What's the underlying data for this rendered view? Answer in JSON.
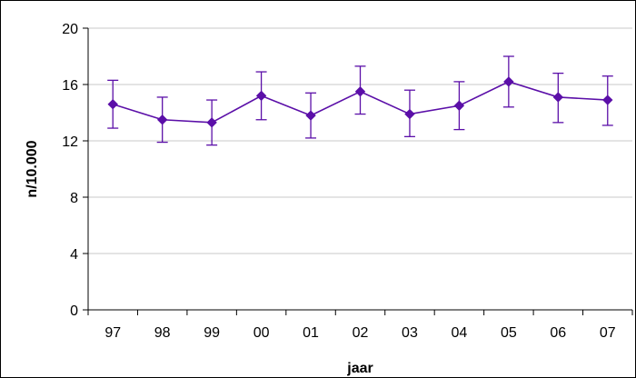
{
  "chart_data": {
    "type": "line",
    "title": "",
    "xlabel": "jaar",
    "ylabel": "n/10.000",
    "categories": [
      "97",
      "98",
      "99",
      "00",
      "01",
      "02",
      "03",
      "04",
      "05",
      "06",
      "07"
    ],
    "series": [
      {
        "values": [
          14.6,
          13.5,
          13.3,
          15.2,
          13.8,
          15.5,
          13.9,
          14.5,
          16.2,
          15.1,
          14.9
        ],
        "error_low": [
          12.9,
          11.9,
          11.7,
          13.5,
          12.2,
          13.9,
          12.3,
          12.8,
          14.4,
          13.3,
          13.1
        ],
        "error_high": [
          16.3,
          15.1,
          14.9,
          16.9,
          15.4,
          17.3,
          15.6,
          16.2,
          18.0,
          16.8,
          16.6
        ],
        "color": "#5b0fa8"
      }
    ],
    "ylim": [
      0,
      20
    ],
    "yticks": [
      0,
      4,
      8,
      12,
      16,
      20
    ],
    "grid": true,
    "legend": "none",
    "marker": "diamond"
  }
}
